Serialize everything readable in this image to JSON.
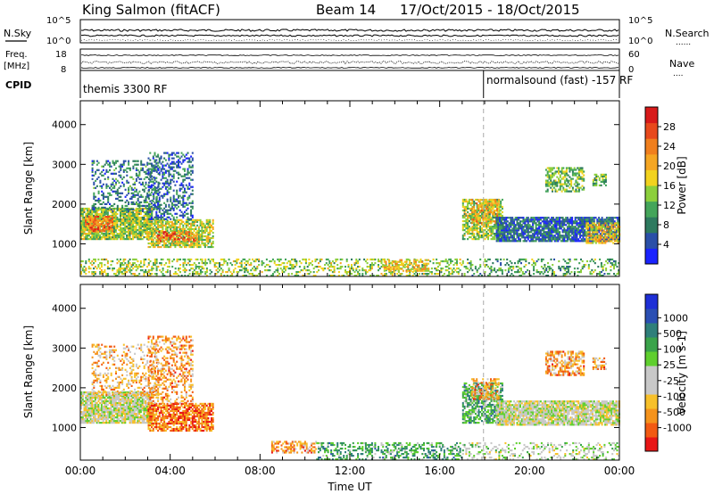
{
  "header": {
    "site": "King Salmon (fitACF)",
    "beam": "Beam 14",
    "dates": "17/Oct/2015 - 18/Oct/2015"
  },
  "strip_labels": {
    "nsky": "N.Sky",
    "nsearch": "N.Search",
    "freq_top": "Freq.",
    "freq_unit": "[MHz]",
    "nave": "Nave",
    "cpid": "CPID",
    "dots": "......",
    "dots_short": "...."
  },
  "strip_ticks": {
    "nsky_left_top": "10^5",
    "nsky_left_bottom": "10^0",
    "nsky_right_top": "10^5",
    "nsky_right_bottom": "10^0",
    "freq_left_top": "18",
    "freq_left_bottom": "8",
    "nave_right_top": "60",
    "nave_right_bottom": "0"
  },
  "cpid_segments": [
    {
      "label": "themis 3300 RF",
      "start_hour": 0
    },
    {
      "label": "normalsound (fast) -157 RF",
      "start_hour": 17.95
    }
  ],
  "mode_change_hour": 17.95,
  "colors": {
    "power": [
      "#1a23ff",
      "#2a4fa8",
      "#2e7a5f",
      "#44a55a",
      "#8ccf3c",
      "#f2d21e",
      "#f5a623",
      "#f07f1e",
      "#e8491c",
      "#d81a1a"
    ],
    "velocity": [
      "#e81616",
      "#f25a12",
      "#f5931c",
      "#f7c02a",
      "#c8c8c8",
      "#c8c8c8",
      "#5fcf2e",
      "#3aa34a",
      "#2f7f7a",
      "#2b4fb3",
      "#1e2fd6"
    ]
  },
  "chart_data": [
    {
      "type": "heatmap",
      "name": "power",
      "xlabel": "",
      "ylabel": "Slant Range [km]",
      "xlim": [
        0,
        24
      ],
      "ylim": [
        180,
        4600
      ],
      "yticks": [
        "1000",
        "2000",
        "3000",
        "4000"
      ],
      "colorbar": {
        "label": "Power [dB]",
        "range": [
          0,
          32
        ],
        "tick_labels": [
          "4",
          "8",
          "12",
          "16",
          "20",
          "24",
          "28"
        ]
      },
      "patches": [
        {
          "t0": 0.0,
          "t1": 3.2,
          "r0": 1100,
          "r1": 1900,
          "lvl": 0.45,
          "dens": 0.85
        },
        {
          "t0": 0.2,
          "t1": 1.4,
          "r0": 1300,
          "r1": 1700,
          "lvl": 0.75,
          "dens": 0.7
        },
        {
          "t0": 0.5,
          "t1": 3.5,
          "r0": 1800,
          "r1": 3100,
          "lvl": 0.25,
          "dens": 0.3
        },
        {
          "t0": 3.0,
          "t1": 5.9,
          "r0": 900,
          "r1": 1600,
          "lvl": 0.5,
          "dens": 0.75
        },
        {
          "t0": 3.4,
          "t1": 5.2,
          "r0": 1050,
          "r1": 1300,
          "lvl": 0.8,
          "dens": 0.55
        },
        {
          "t0": 3.0,
          "t1": 5.0,
          "r0": 1600,
          "r1": 3300,
          "lvl": 0.2,
          "dens": 0.4
        },
        {
          "t0": 0.0,
          "t1": 17.0,
          "r0": 180,
          "r1": 600,
          "lvl": 0.45,
          "dens": 0.35
        },
        {
          "t0": 13.5,
          "t1": 15.5,
          "r0": 300,
          "r1": 600,
          "lvl": 0.6,
          "dens": 0.55
        },
        {
          "t0": 17.0,
          "t1": 18.8,
          "r0": 1100,
          "r1": 2100,
          "lvl": 0.45,
          "dens": 0.7
        },
        {
          "t0": 17.4,
          "t1": 18.6,
          "r0": 1500,
          "r1": 2100,
          "lvl": 0.65,
          "dens": 0.5
        },
        {
          "t0": 18.5,
          "t1": 24.0,
          "r0": 1050,
          "r1": 1650,
          "lvl": 0.2,
          "dens": 0.85
        },
        {
          "t0": 22.5,
          "t1": 24.0,
          "r0": 1000,
          "r1": 1500,
          "lvl": 0.6,
          "dens": 0.6
        },
        {
          "t0": 17.0,
          "t1": 24.0,
          "r0": 180,
          "r1": 600,
          "lvl": 0.35,
          "dens": 0.3
        },
        {
          "t0": 20.7,
          "t1": 22.4,
          "r0": 2300,
          "r1": 2900,
          "lvl": 0.4,
          "dens": 0.6
        },
        {
          "t0": 22.8,
          "t1": 23.4,
          "r0": 2450,
          "r1": 2750,
          "lvl": 0.4,
          "dens": 0.6
        }
      ]
    },
    {
      "type": "heatmap",
      "name": "velocity",
      "xlabel": "Time UT",
      "ylabel": "Slant Range [km]",
      "xlim": [
        0,
        24
      ],
      "ylim": [
        180,
        4600
      ],
      "yticks": [
        "1000",
        "2000",
        "3000",
        "4000"
      ],
      "xticks": [
        "00:00",
        "04:00",
        "08:00",
        "12:00",
        "16:00",
        "20:00",
        "00:00"
      ],
      "colorbar": {
        "label": "Velocity [m s-1]",
        "tick_labels": [
          "-1000",
          "-500",
          "-100",
          "-25",
          "25",
          "100",
          "500",
          "1000"
        ]
      },
      "patches": [
        {
          "t0": 0.0,
          "t1": 3.2,
          "r0": 1100,
          "r1": 1900,
          "lvl": 0.45,
          "dens": 0.85
        },
        {
          "t0": 0.5,
          "t1": 3.5,
          "r0": 1800,
          "r1": 3100,
          "lvl": 0.3,
          "dens": 0.3
        },
        {
          "t0": 3.0,
          "t1": 5.9,
          "r0": 900,
          "r1": 1600,
          "lvl": 0.18,
          "dens": 0.75
        },
        {
          "t0": 3.0,
          "t1": 5.0,
          "r0": 1600,
          "r1": 3300,
          "lvl": 0.25,
          "dens": 0.4
        },
        {
          "t0": 8.5,
          "t1": 10.5,
          "r0": 350,
          "r1": 650,
          "lvl": 0.25,
          "dens": 0.5
        },
        {
          "t0": 10.5,
          "t1": 17.0,
          "r0": 180,
          "r1": 600,
          "lvl": 0.65,
          "dens": 0.45
        },
        {
          "t0": 17.0,
          "t1": 18.8,
          "r0": 1100,
          "r1": 2100,
          "lvl": 0.65,
          "dens": 0.7
        },
        {
          "t0": 17.4,
          "t1": 18.6,
          "r0": 1700,
          "r1": 2200,
          "lvl": 0.25,
          "dens": 0.5
        },
        {
          "t0": 18.5,
          "t1": 24.0,
          "r0": 1050,
          "r1": 1650,
          "lvl": 0.45,
          "dens": 0.9
        },
        {
          "t0": 17.0,
          "t1": 24.0,
          "r0": 180,
          "r1": 600,
          "lvl": 0.5,
          "dens": 0.3
        },
        {
          "t0": 20.7,
          "t1": 22.4,
          "r0": 2300,
          "r1": 2900,
          "lvl": 0.25,
          "dens": 0.6
        },
        {
          "t0": 22.8,
          "t1": 23.4,
          "r0": 2450,
          "r1": 2750,
          "lvl": 0.25,
          "dens": 0.6
        }
      ]
    }
  ]
}
